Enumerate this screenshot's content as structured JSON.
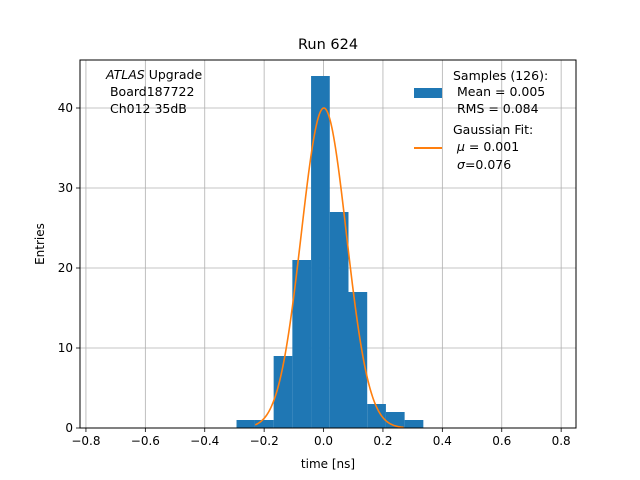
{
  "chart_data": {
    "type": "bar",
    "title": "Run 624",
    "xlabel": "time [ns]",
    "ylabel": "Entries",
    "xlim": [
      -0.82,
      0.85
    ],
    "ylim": [
      0,
      46
    ],
    "grid": true,
    "xticks": [
      -0.8,
      -0.6,
      -0.4,
      -0.2,
      0.0,
      0.2,
      0.4,
      0.6,
      0.8
    ],
    "xtick_labels": [
      "−0.8",
      "−0.6",
      "−0.4",
      "−0.2",
      "0.0",
      "0.2",
      "0.4",
      "0.6",
      "0.8"
    ],
    "yticks": [
      0,
      10,
      20,
      30,
      40
    ],
    "ytick_labels": [
      "0",
      "10",
      "20",
      "30",
      "40"
    ],
    "histogram": {
      "name": "Samples",
      "color": "#1f77b4",
      "bin_edges": [
        -0.293,
        -0.231,
        -0.168,
        -0.105,
        -0.042,
        0.021,
        0.084,
        0.147,
        0.21,
        0.273,
        0.336
      ],
      "counts": [
        1,
        1,
        9,
        21,
        44,
        27,
        17,
        3,
        2,
        1
      ]
    },
    "fit": {
      "name": "Gaussian Fit",
      "color": "#ff7f0e",
      "mu": 0.001,
      "sigma": 0.076,
      "amplitude": 40,
      "x_range": [
        -0.23,
        0.27
      ]
    },
    "annotation": {
      "line1_italic": "ATLAS",
      "line1_rest": " Upgrade",
      "line2": " Board187722",
      "line3": " Ch012 35dB"
    },
    "legend": {
      "position": "upper right",
      "hist_lines": [
        "Samples (126):",
        " Mean = 0.005",
        " RMS = 0.084"
      ],
      "fit_line1": "Gaussian Fit:",
      "fit_mu_sym": "μ",
      "fit_mu_rest": " = 0.001",
      "fit_sigma_sym": "σ",
      "fit_sigma_rest": "=0.076"
    }
  }
}
